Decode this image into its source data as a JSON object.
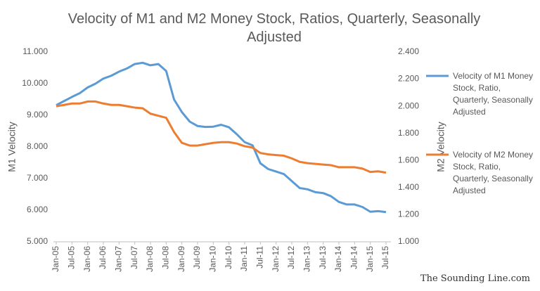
{
  "chart_data": {
    "type": "line",
    "title": "Velocity of M1 and M2 Money Stock, Ratios, Quarterly, Seasonally Adjusted",
    "y_label": "M1 Velocity",
    "y2_label": "M2 Velocity",
    "watermark": "The Sounding Line.com",
    "categories": [
      "Jan-05",
      null,
      "Jul-05",
      null,
      "Jan-06",
      null,
      "Jul-06",
      null,
      "Jan-07",
      null,
      "Jul-07",
      null,
      "Jan-08",
      null,
      "Jul-08",
      null,
      "Jan-09",
      null,
      "Jul-09",
      null,
      "Jan-10",
      null,
      "Jul-10",
      null,
      "Jan-11",
      null,
      "Jul-11",
      null,
      "Jan-12",
      null,
      "Jul-12",
      null,
      "Jan-13",
      null,
      "Jul-13",
      null,
      "Jan-14",
      null,
      "Jul-14",
      null,
      "Jan-15",
      null,
      "Jul-15"
    ],
    "series": [
      {
        "name": "Velocity of M1 Money Stock, Ratio, Quarterly, Seasonally Adjusted",
        "color": "#5b9bd5",
        "values": [
          9.32,
          9.45,
          9.58,
          9.7,
          9.88,
          10.0,
          10.16,
          10.25,
          10.38,
          10.48,
          10.62,
          10.66,
          10.58,
          10.62,
          10.4,
          9.5,
          9.1,
          8.8,
          8.66,
          8.63,
          8.64,
          8.7,
          8.62,
          8.4,
          8.15,
          8.05,
          7.48,
          7.3,
          7.22,
          7.14,
          6.92,
          6.7,
          6.66,
          6.57,
          6.54,
          6.44,
          6.26,
          6.18,
          6.18,
          6.1,
          5.95,
          5.97,
          5.94
        ]
      },
      {
        "name": "Velocity of M2 Money Stock, Ratio, Quarterly, Seasonally Adjusted",
        "color": "#ed7d31",
        "axis": "y2",
        "values": [
          2.0,
          2.01,
          2.02,
          2.02,
          2.035,
          2.035,
          2.02,
          2.01,
          2.01,
          2.0,
          1.99,
          1.985,
          1.945,
          1.93,
          1.915,
          1.81,
          1.73,
          1.71,
          1.71,
          1.72,
          1.73,
          1.735,
          1.735,
          1.725,
          1.705,
          1.695,
          1.655,
          1.645,
          1.64,
          1.635,
          1.615,
          1.59,
          1.58,
          1.575,
          1.57,
          1.565,
          1.55,
          1.55,
          1.55,
          1.54,
          1.515,
          1.52,
          1.51
        ]
      }
    ],
    "ylim": [
      5,
      11
    ],
    "yticks": [
      {
        "value": 5,
        "label": "5.000"
      },
      {
        "value": 6,
        "label": "6.000"
      },
      {
        "value": 7,
        "label": "7.000"
      },
      {
        "value": 8,
        "label": "8.000"
      },
      {
        "value": 9,
        "label": "9.000"
      },
      {
        "value": 10,
        "label": "10.000"
      },
      {
        "value": 11,
        "label": "11.000"
      }
    ],
    "y2lim": [
      1,
      2.4
    ],
    "y2ticks": [
      {
        "value": 1,
        "label": "1.000"
      },
      {
        "value": 1.2,
        "label": "1.200"
      },
      {
        "value": 1.4,
        "label": "1.400"
      },
      {
        "value": 1.6,
        "label": "1.600"
      },
      {
        "value": 1.8,
        "label": "1.800"
      },
      {
        "value": 2,
        "label": "2.000"
      },
      {
        "value": 2.2,
        "label": "2.200"
      },
      {
        "value": 2.4,
        "label": "2.400"
      }
    ],
    "legend": "right"
  }
}
